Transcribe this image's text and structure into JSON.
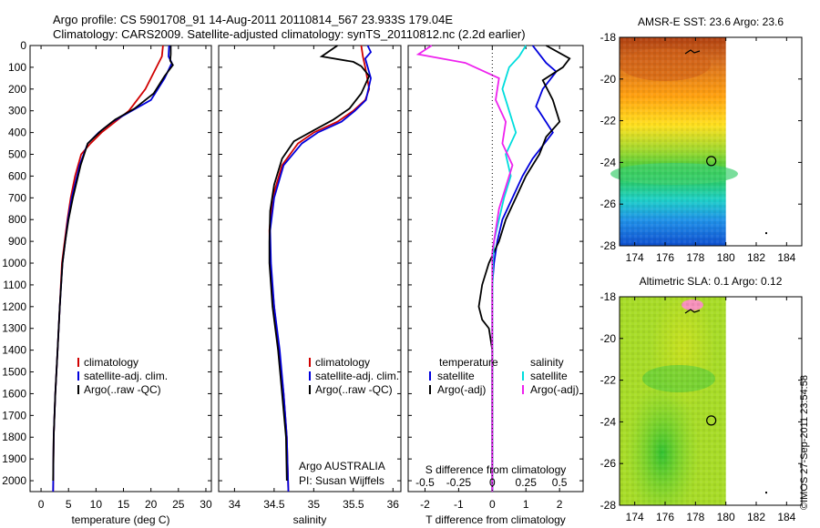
{
  "header": {
    "line1": "Argo profile: CS 5901708_91 14-Aug-2011 20110814_567 23.933S 179.04E",
    "line2": "Climatology: CARS2009. Satellite-adjusted climatology: synTS_20110812.nc (2.2d earlier)"
  },
  "side_label": "©IMOS 27-Sep-2011 23:54:58",
  "colors": {
    "clim": "#d00000",
    "sat": "#0000dd",
    "argo": "#000000",
    "cyan": "#00dddd",
    "magenta": "#ee22ee"
  },
  "chart_data": [
    {
      "type": "line",
      "id": "temperature",
      "xlabel": "temperature (deg C)",
      "ylabel": "",
      "xlim": [
        -2,
        31
      ],
      "ylim": [
        2050,
        0
      ],
      "xticks": [
        0,
        5,
        10,
        15,
        20,
        25,
        30
      ],
      "xtick_labels": [
        "0",
        "5",
        "10",
        "15",
        "20",
        "25",
        "30"
      ],
      "yticks": [
        0,
        100,
        200,
        300,
        400,
        500,
        600,
        700,
        800,
        900,
        1000,
        1100,
        1200,
        1300,
        1400,
        1500,
        1600,
        1700,
        1800,
        1900,
        2000
      ],
      "ytick_labels": [
        "0",
        "100",
        "200",
        "300",
        "400",
        "500",
        "600",
        "700",
        "800",
        "900",
        "1000",
        "1100",
        "1200",
        "1300",
        "1400",
        "1500",
        "1600",
        "1700",
        "1800",
        "1900",
        "2000"
      ],
      "legend": [
        "climatology",
        "satellite-adj. clim.",
        "Argo(..raw -QC)"
      ],
      "series": [
        {
          "name": "climatology",
          "color": "clim",
          "x": [
            22.2,
            22.0,
            21.0,
            19.0,
            16.0,
            13.5,
            11.0,
            9.0,
            7.3,
            6.2,
            5.4,
            4.8,
            4.3,
            3.8,
            3.4,
            3.0,
            2.6,
            2.3,
            2.2
          ],
          "y": [
            0,
            50,
            100,
            200,
            300,
            350,
            400,
            450,
            500,
            600,
            700,
            800,
            900,
            1000,
            1200,
            1400,
            1600,
            1800,
            2050
          ]
        },
        {
          "name": "satellite-adj. clim.",
          "color": "sat",
          "x": [
            23.3,
            23.2,
            23.8,
            22.5,
            20.0,
            16.5,
            13.0,
            10.5,
            8.5,
            7.0,
            5.6,
            4.9,
            4.4,
            3.9,
            3.4,
            3.0,
            2.6,
            2.3,
            2.2
          ],
          "y": [
            0,
            50,
            80,
            150,
            250,
            300,
            350,
            400,
            450,
            550,
            700,
            800,
            900,
            1000,
            1200,
            1400,
            1600,
            1800,
            2050
          ]
        },
        {
          "name": "Argo(..raw -QC)",
          "color": "argo",
          "x": [
            23.6,
            23.6,
            23.5,
            24.0,
            22.5,
            20.5,
            17.0,
            13.5,
            11.0,
            8.5,
            7.2,
            5.8,
            5.0,
            4.4,
            3.9,
            3.4,
            3.0,
            2.6,
            2.3,
            2.2
          ],
          "y": [
            0,
            40,
            70,
            90,
            140,
            220,
            290,
            340,
            390,
            450,
            550,
            700,
            800,
            900,
            1000,
            1200,
            1400,
            1600,
            1800,
            2000
          ]
        }
      ]
    },
    {
      "type": "line",
      "id": "salinity",
      "xlabel": "salinity",
      "ylabel": "",
      "xlim": [
        33.8,
        36.1
      ],
      "ylim": [
        2050,
        0
      ],
      "xticks": [
        34,
        34.5,
        35,
        35.5,
        36
      ],
      "xtick_labels": [
        "34",
        "34.5",
        "35",
        "35.5",
        "36"
      ],
      "legend": [
        "climatology",
        "satellite-adj. clim.",
        "Argo(..raw -QC)"
      ],
      "annotation": [
        "Argo AUSTRALIA",
        "PI: Susan Wijffels"
      ],
      "series": [
        {
          "name": "climatology",
          "color": "clim",
          "x": [
            35.6,
            35.62,
            35.65,
            35.7,
            35.65,
            35.5,
            35.3,
            35.0,
            34.8,
            34.6,
            34.48,
            34.44,
            34.45,
            34.5,
            34.56,
            34.62,
            34.66,
            34.68
          ],
          "y": [
            0,
            50,
            100,
            200,
            250,
            300,
            350,
            400,
            450,
            550,
            700,
            850,
            1000,
            1200,
            1400,
            1600,
            1800,
            2050
          ]
        },
        {
          "name": "satellite-adj. clim.",
          "color": "sat",
          "x": [
            35.68,
            35.72,
            35.65,
            35.72,
            35.66,
            35.52,
            35.35,
            35.05,
            34.85,
            34.62,
            34.5,
            34.45,
            34.46,
            34.5,
            34.57,
            34.62,
            34.66,
            34.68
          ],
          "y": [
            0,
            30,
            60,
            150,
            250,
            300,
            350,
            400,
            450,
            550,
            700,
            850,
            1000,
            1200,
            1400,
            1600,
            1800,
            2050
          ]
        },
        {
          "name": "Argo(..raw -QC)",
          "color": "argo",
          "x": [
            35.3,
            35.1,
            35.5,
            35.6,
            35.7,
            35.6,
            35.45,
            35.25,
            35.0,
            34.75,
            34.6,
            34.5,
            34.45,
            34.44,
            34.44,
            34.48,
            34.55,
            34.6,
            34.65,
            34.66
          ],
          "y": [
            0,
            50,
            75,
            95,
            140,
            220,
            290,
            340,
            390,
            440,
            520,
            640,
            760,
            900,
            1000,
            1200,
            1400,
            1600,
            1800,
            2000
          ]
        }
      ]
    },
    {
      "type": "line",
      "id": "difference",
      "xlabel": "T difference from climatology",
      "xlabel_top": "S difference from climatology",
      "xlim": [
        -2.5,
        2.7
      ],
      "ylim": [
        2050,
        0
      ],
      "xticks": [
        -2,
        -1,
        0,
        1,
        2
      ],
      "xtick_labels": [
        "-2",
        "-1",
        "0",
        "1",
        "2"
      ],
      "sticks": [
        -2,
        -1,
        0,
        1,
        2
      ],
      "stick_labels": [
        "-0.5",
        "-0.25",
        "0",
        "0.25",
        "0.5"
      ],
      "legend_left_title": "temperature",
      "legend_right_title": "salinity",
      "legend": [
        "satellite",
        "Argo(-adj)",
        "satellite",
        "Argo(-adj)"
      ],
      "series": [
        {
          "name": "satellite",
          "color": "sat",
          "x": [
            1.2,
            1.4,
            1.6,
            1.9,
            1.5,
            1.3,
            1.8,
            1.5,
            1.2,
            0.9,
            0.6,
            0.3,
            0.15,
            0.05,
            0.0,
            0.0,
            0.0,
            0.0,
            0.0,
            0.0
          ],
          "y": [
            0,
            40,
            80,
            120,
            200,
            280,
            400,
            460,
            520,
            600,
            700,
            800,
            900,
            1000,
            1100,
            1200,
            1400,
            1600,
            1800,
            2050
          ]
        },
        {
          "name": "Argo(-adj)",
          "color": "argo",
          "x": [
            1.6,
            2.3,
            2.1,
            1.5,
            1.8,
            2.0,
            1.6,
            1.4,
            1.0,
            0.7,
            0.4,
            0.2,
            -0.1,
            -0.3,
            -0.4,
            -0.3,
            -0.1,
            0.0,
            0.0,
            0.0,
            0.0
          ],
          "y": [
            0,
            60,
            100,
            160,
            250,
            350,
            420,
            500,
            600,
            700,
            800,
            900,
            1000,
            1100,
            1200,
            1260,
            1300,
            1400,
            1600,
            1800,
            2050
          ]
        },
        {
          "name": "satellite S",
          "color": "cyan",
          "x": [
            1.0,
            0.8,
            0.5,
            0.3,
            0.5,
            0.7,
            0.4,
            0.55,
            0.35,
            0.2,
            0.05,
            0.02,
            0.0,
            0.0,
            0.0,
            0.0,
            0.0
          ],
          "y": [
            0,
            50,
            100,
            200,
            300,
            400,
            500,
            600,
            700,
            800,
            900,
            1000,
            1200,
            1400,
            1600,
            1800,
            2050
          ]
        },
        {
          "name": "Argo(-adj) S",
          "color": "magenta",
          "x": [
            -1.8,
            -2.2,
            -0.8,
            0.2,
            0.1,
            0.4,
            0.3,
            0.6,
            0.4,
            0.2,
            0.1,
            0.0,
            0.0,
            0.0,
            0.0,
            0.0
          ],
          "y": [
            0,
            40,
            80,
            150,
            250,
            350,
            450,
            550,
            650,
            750,
            850,
            950,
            1100,
            1400,
            1700,
            2050
          ]
        }
      ]
    },
    {
      "type": "heatmap",
      "id": "sst_map",
      "title": "AMSR-E SST: 23.6 Argo: 23.6",
      "xlim": [
        173,
        185
      ],
      "ylim": [
        -28,
        -18
      ],
      "xticks": [
        174,
        176,
        178,
        180,
        182,
        184
      ],
      "yticks": [
        -18,
        -20,
        -22,
        -24,
        -26,
        -28
      ],
      "marker": {
        "x": 179.04,
        "y": -23.933
      }
    },
    {
      "type": "heatmap",
      "id": "sla_map",
      "title": "Altimetric SLA: 0.1 Argo: 0.12",
      "xlim": [
        173,
        185
      ],
      "ylim": [
        -28,
        -18
      ],
      "xticks": [
        174,
        176,
        178,
        180,
        182,
        184
      ],
      "yticks": [
        -18,
        -20,
        -22,
        -24,
        -26,
        -28
      ],
      "marker": {
        "x": 179.04,
        "y": -23.933
      }
    }
  ]
}
